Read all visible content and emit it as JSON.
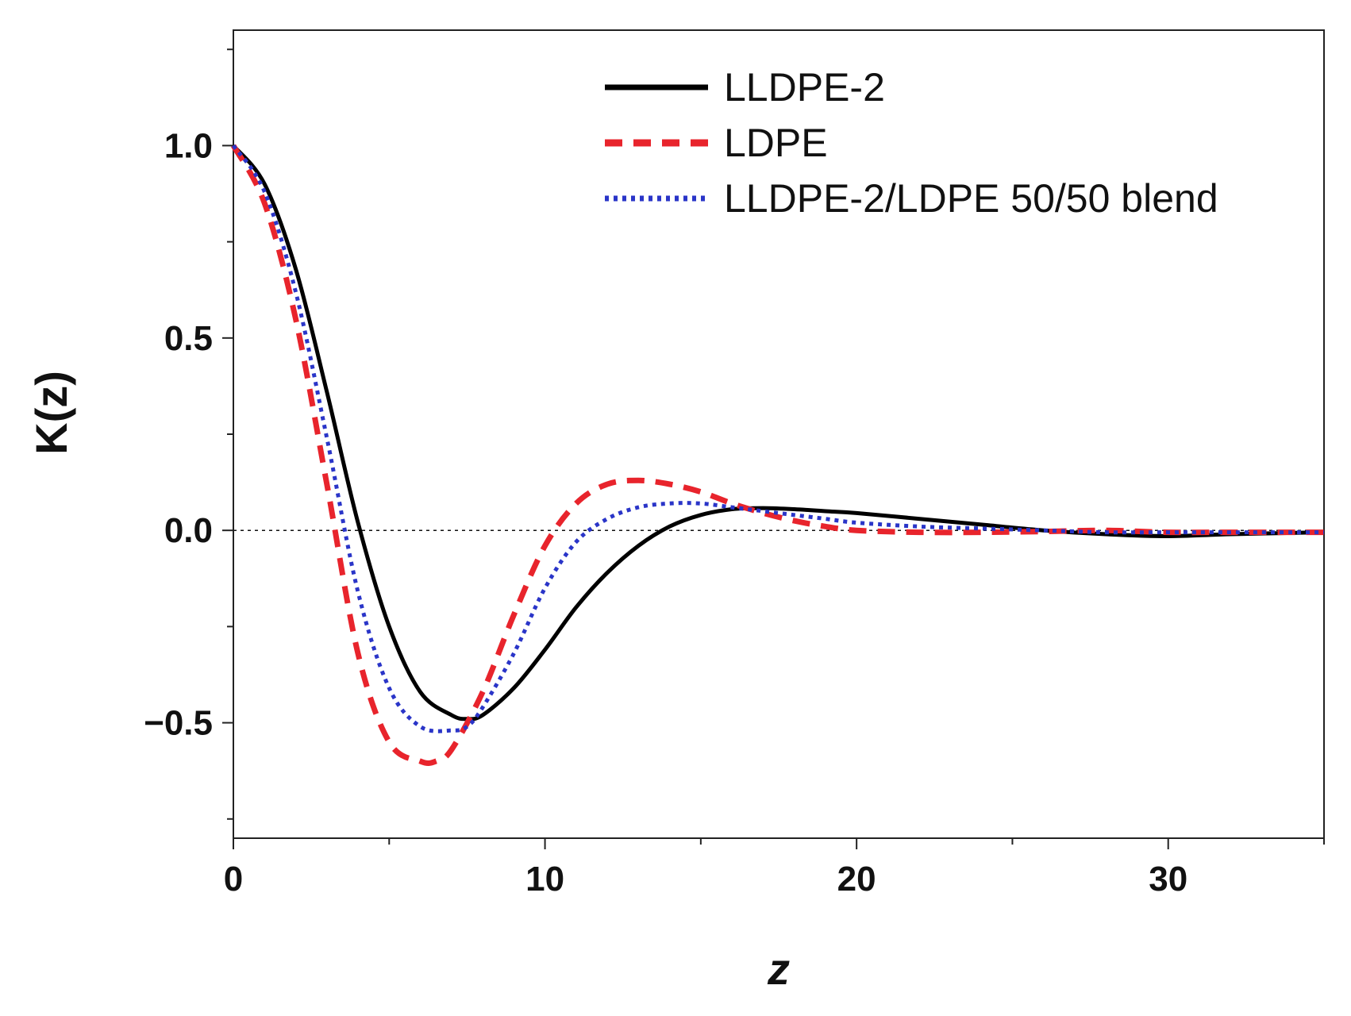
{
  "chart_data": {
    "type": "line",
    "title": "",
    "xlabel": "z",
    "ylabel": "K(z)",
    "xlim": [
      0,
      35
    ],
    "ylim": [
      -0.8,
      1.3
    ],
    "x_ticks": [
      0,
      10,
      20,
      30
    ],
    "x_tick_labels": [
      "0",
      "10",
      "20",
      "30"
    ],
    "y_ticks": [
      -0.5,
      0.0,
      0.5,
      1.0
    ],
    "y_tick_labels": [
      "−0.5",
      "0.0",
      "0.5",
      "1.0"
    ],
    "reference_line_y": 0.0,
    "legend_position": "top-right",
    "series": [
      {
        "name": "LLDPE-2",
        "color": "#000000",
        "style": "solid",
        "x": [
          0,
          1,
          2,
          3,
          4,
          5,
          6,
          7,
          7.5,
          8,
          9,
          10,
          11,
          12,
          13,
          14,
          15,
          16,
          17,
          18,
          19,
          20,
          22,
          24,
          26,
          28,
          30,
          32,
          35
        ],
        "y": [
          1.0,
          0.9,
          0.68,
          0.36,
          0.02,
          -0.25,
          -0.42,
          -0.48,
          -0.49,
          -0.48,
          -0.41,
          -0.31,
          -0.2,
          -0.11,
          -0.04,
          0.01,
          0.04,
          0.055,
          0.058,
          0.055,
          0.05,
          0.045,
          0.03,
          0.015,
          0.0,
          -0.01,
          -0.015,
          -0.01,
          -0.005
        ]
      },
      {
        "name": "LDPE",
        "color": "#e8242c",
        "style": "dashed",
        "x": [
          0,
          1,
          2,
          3,
          4,
          5,
          6,
          6.5,
          7,
          8,
          9,
          10,
          11,
          12,
          13,
          14,
          15,
          16,
          17,
          18,
          19,
          20,
          22,
          24,
          26,
          28,
          30,
          32,
          35
        ],
        "y": [
          1.0,
          0.85,
          0.55,
          0.12,
          -0.32,
          -0.55,
          -0.6,
          -0.6,
          -0.57,
          -0.42,
          -0.22,
          -0.04,
          0.07,
          0.12,
          0.13,
          0.12,
          0.1,
          0.07,
          0.045,
          0.025,
          0.01,
          0.0,
          -0.005,
          -0.005,
          -0.003,
          0.0,
          -0.005,
          -0.005,
          -0.005
        ]
      },
      {
        "name": "LLDPE-2/LDPE 50/50 blend",
        "color": "#2a35c8",
        "style": "dotted",
        "x": [
          0,
          1,
          2,
          3,
          4,
          5,
          6,
          7,
          7.5,
          8,
          9,
          10,
          11,
          12,
          13,
          14,
          15,
          16,
          17,
          18,
          19,
          20,
          22,
          24,
          26,
          28,
          30,
          32,
          35
        ],
        "y": [
          1.0,
          0.88,
          0.62,
          0.24,
          -0.16,
          -0.41,
          -0.51,
          -0.52,
          -0.51,
          -0.46,
          -0.32,
          -0.15,
          -0.03,
          0.03,
          0.06,
          0.07,
          0.07,
          0.06,
          0.05,
          0.04,
          0.03,
          0.02,
          0.01,
          0.005,
          0.0,
          -0.005,
          -0.005,
          -0.005,
          -0.005
        ]
      }
    ]
  }
}
